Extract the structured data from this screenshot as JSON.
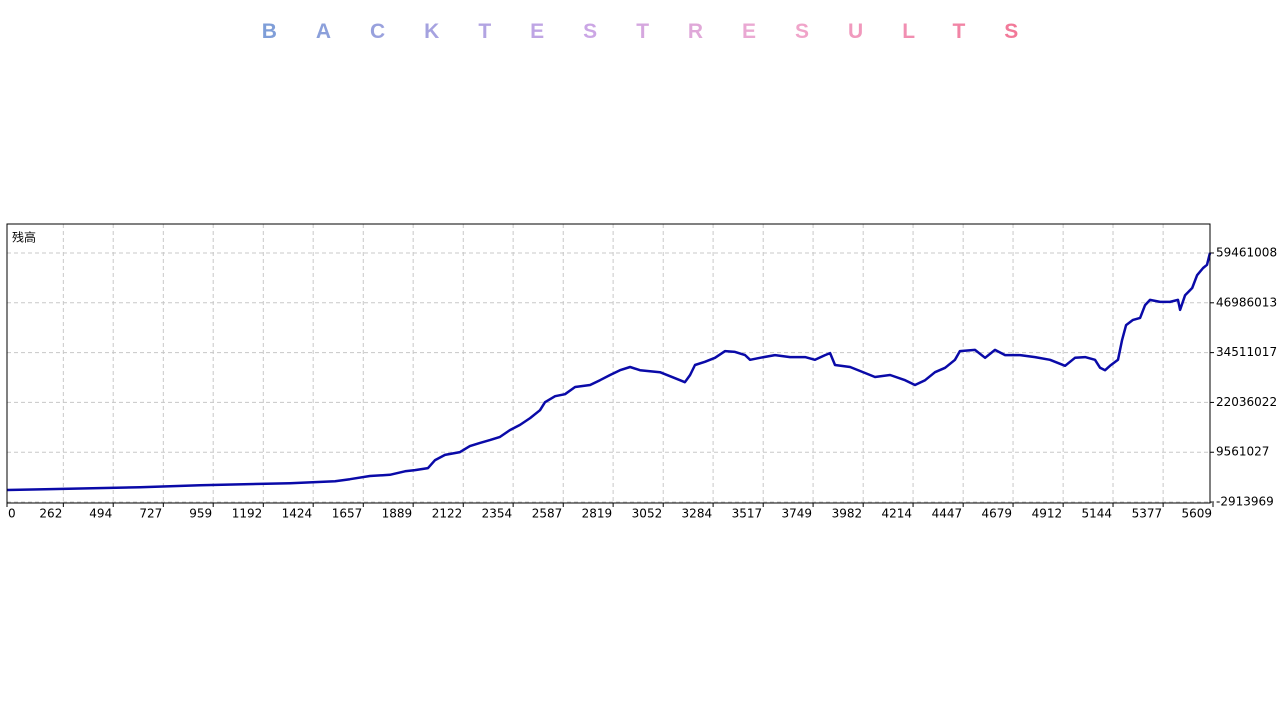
{
  "title": "BACKTEST RESULTS",
  "chart_data": {
    "type": "line",
    "x": [
      0,
      177,
      619,
      898,
      1316,
      1526,
      1595,
      1688,
      1781,
      1851,
      1898,
      1958,
      1991,
      2037,
      2107,
      2153,
      2200,
      2246,
      2293,
      2339,
      2386,
      2433,
      2479,
      2502,
      2549,
      2595,
      2642,
      2712,
      2758,
      2805,
      2851,
      2898,
      2944,
      3037,
      3107,
      3153,
      3177,
      3200,
      3246,
      3293,
      3340,
      3386,
      3433,
      3456,
      3502,
      3572,
      3642,
      3712,
      3758,
      3805,
      3828,
      3851,
      3921,
      3991,
      4037,
      4107,
      4177,
      4223,
      4270,
      4316,
      4363,
      4409,
      4432,
      4502,
      4549,
      4595,
      4642,
      4712,
      4781,
      4851,
      4921,
      4967,
      5014,
      5060,
      5084,
      5107,
      5130,
      5167,
      5186,
      5205,
      5237,
      5270,
      5293,
      5316,
      5363,
      5409,
      5446,
      5456,
      5479,
      5512,
      5535,
      5563,
      5581,
      5595
    ],
    "series": [
      {
        "name": "残高",
        "color": "#0a0aa8",
        "values": [
          100000,
          300000,
          800000,
          1300000,
          1800000,
          2300000,
          2800000,
          3600000,
          3900000,
          4800000,
          5100000,
          5600000,
          7600000,
          8900000,
          9600000,
          11100000,
          11900000,
          12600000,
          13400000,
          15100000,
          16400000,
          18100000,
          20100000,
          22100000,
          23600000,
          24100000,
          25900000,
          26400000,
          27600000,
          28900000,
          30100000,
          30900000,
          30100000,
          29600000,
          28100000,
          27100000,
          28900000,
          31400000,
          32200000,
          33200000,
          34900000,
          34700000,
          33900000,
          32700000,
          33200000,
          33900000,
          33400000,
          33400000,
          32700000,
          33900000,
          34400000,
          31400000,
          30900000,
          29400000,
          28400000,
          28900000,
          27600000,
          26400000,
          27600000,
          29600000,
          30700000,
          32700000,
          34900000,
          35200000,
          33200000,
          35200000,
          33900000,
          33900000,
          33400000,
          32700000,
          31200000,
          33200000,
          33400000,
          32700000,
          30700000,
          30100000,
          31200000,
          32700000,
          37700000,
          41400000,
          42700000,
          43200000,
          46400000,
          47700000,
          47200000,
          47200000,
          47700000,
          45200000,
          48900000,
          50700000,
          53900000,
          55700000,
          56500000,
          59500000
        ]
      }
    ],
    "xlim": [
      0,
      5595
    ],
    "xticks": [
      0,
      262,
      494,
      727,
      959,
      1192,
      1424,
      1657,
      1889,
      2122,
      2354,
      2587,
      2819,
      3052,
      3284,
      3517,
      3749,
      3982,
      4214,
      4447,
      4679,
      4912,
      5144,
      5377,
      5609
    ],
    "ylim": [
      -3150000,
      66720000
    ],
    "yticks": [
      -2913969,
      9561027,
      22036022,
      34511017,
      46986013,
      59461008
    ],
    "grid": true
  }
}
